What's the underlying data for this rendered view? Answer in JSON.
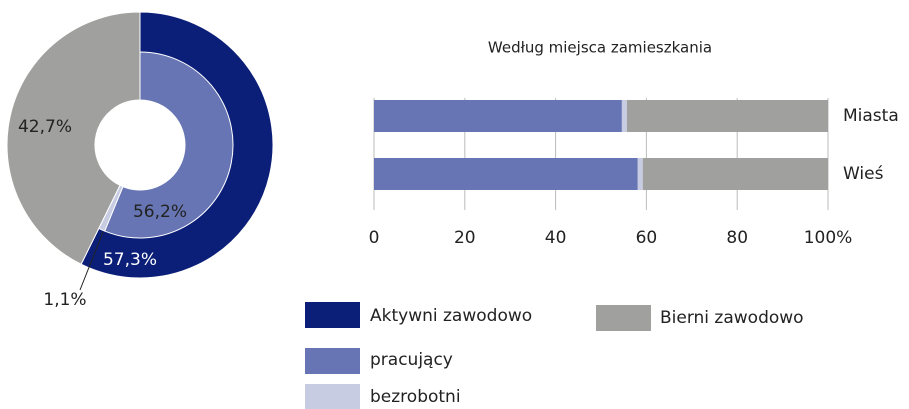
{
  "chart_data": [
    {
      "type": "donut",
      "rings": [
        {
          "names": [
            "Aktywni zawodowo",
            "Bierni zawodowo"
          ],
          "values": [
            57.3,
            42.7
          ],
          "value_labels": [
            "57,3%",
            "42,7%"
          ],
          "colors": [
            "#0b1f78",
            "#a0a09e"
          ]
        },
        {
          "names": [
            "pracujący",
            "bezrobotni"
          ],
          "values": [
            56.2,
            1.1
          ],
          "value_labels": [
            "56,2%",
            "1,1%"
          ],
          "colors": [
            "#6775b4",
            "#c8cce3"
          ]
        }
      ]
    },
    {
      "type": "bar",
      "orientation": "horizontal",
      "stacked": true,
      "title": "Według miejsca zamieszkania",
      "categories": [
        "Miasta",
        "Wieś"
      ],
      "series": [
        {
          "color": "#6775b4",
          "values": [
            54.6,
            58.1
          ]
        },
        {
          "color": "#c8cce3",
          "values": [
            1.1,
            1.1
          ]
        },
        {
          "color": "#a0a09e",
          "values": [
            44.3,
            40.8
          ]
        }
      ],
      "xlim": [
        0,
        100
      ],
      "xticks": [
        0,
        20,
        40,
        60,
        80,
        {
          "value": 100,
          "label": "100%"
        }
      ],
      "grid": true
    }
  ]
}
